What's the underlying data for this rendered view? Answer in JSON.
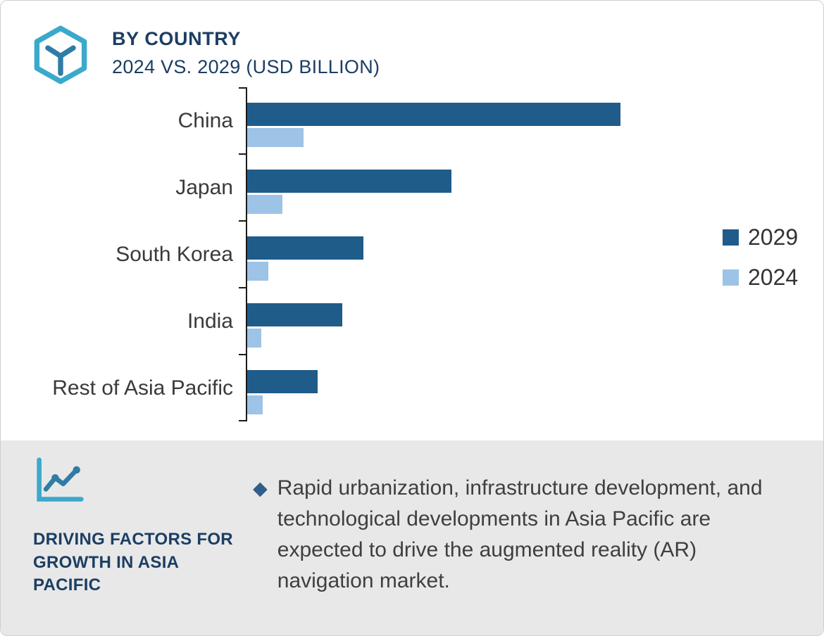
{
  "header": {
    "title": "BY COUNTRY",
    "subtitle": "2024 VS. 2029 (USD BILLION)"
  },
  "chart_data": {
    "type": "bar",
    "orientation": "horizontal",
    "title": "BY COUNTRY",
    "subtitle": "2024 VS. 2029 (USD BILLION)",
    "unit": "USD Billion",
    "categories": [
      "China",
      "Japan",
      "South Korea",
      "India",
      "Rest of Asia Pacific"
    ],
    "series": [
      {
        "name": "2029",
        "color": "#1F5C8A",
        "values": [
          5.3,
          2.9,
          1.65,
          1.35,
          1.0
        ]
      },
      {
        "name": "2024",
        "color": "#9DC3E6",
        "values": [
          0.8,
          0.5,
          0.3,
          0.2,
          0.22
        ]
      }
    ],
    "xlim": [
      0,
      6
    ],
    "grid": false,
    "legend_position": "right"
  },
  "footer": {
    "heading": "DRIVING FACTORS FOR GROWTH IN ASIA PACIFIC",
    "bullet_text": "Rapid urbanization, infrastructure development, and technological developments in Asia Pacific are expected to drive the augmented reality (AR) navigation market."
  },
  "colors": {
    "dark_blue": "#1F5C8A",
    "light_blue": "#9DC3E6",
    "navy_text": "#1C3E63",
    "teal_icon": "#3BA9CB",
    "footer_background": "#E8E8E8",
    "body_text": "#3F3F3F"
  }
}
